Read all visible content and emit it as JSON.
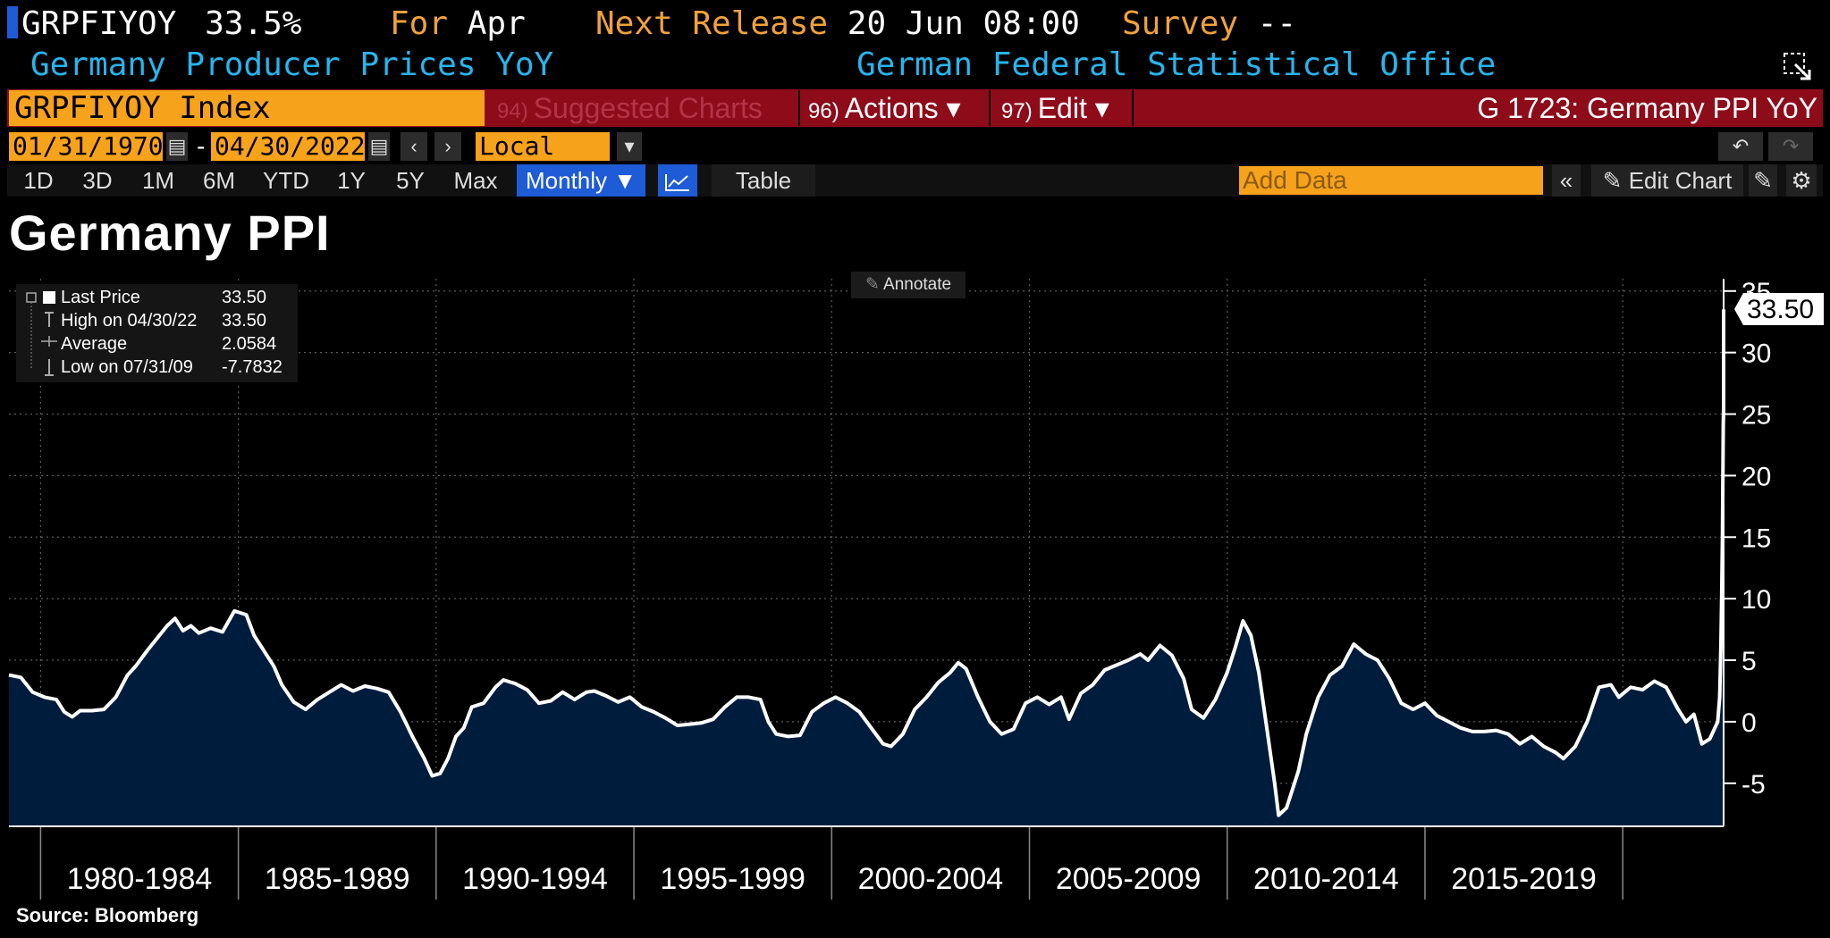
{
  "header": {
    "ticker": "GRPFIYOY",
    "value": "33.5%",
    "for_label": "For",
    "for_value": "Apr",
    "next_release_label": "Next Release",
    "next_release_value": "20 Jun 08:00",
    "survey_label": "Survey",
    "survey_value": "--",
    "description": "Germany Producer Prices YoY",
    "source_org": "German Federal Statistical Office"
  },
  "command_bar": {
    "security": "GRPFIYOY Index",
    "suggested": {
      "num": "94)",
      "label": "Suggested Charts"
    },
    "actions": {
      "num": "96)",
      "label": "Actions ▾"
    },
    "edit": {
      "num": "97)",
      "label": "Edit ▾"
    },
    "page_title": "G 1723: Germany PPI YoY"
  },
  "date_range": {
    "start": "01/31/1970",
    "end": "04/30/2022",
    "currency": "Local CCY"
  },
  "periods": [
    "1D",
    "3D",
    "1M",
    "6M",
    "YTD",
    "1Y",
    "5Y",
    "Max"
  ],
  "frequency": "Monthly ▼",
  "table_label": "Table",
  "add_data_placeholder": "Add Data",
  "edit_chart_label": "Edit Chart",
  "annotate_label": "Annotate",
  "legend": {
    "last_price_label": "Last Price",
    "last_price": "33.50",
    "high_label": "High on 04/30/22",
    "high": "33.50",
    "average_label": "Average",
    "average": "2.0584",
    "low_label": "Low on 07/31/09",
    "low": "-7.7832"
  },
  "source": "Source: Bloomberg",
  "chart_data": {
    "type": "area",
    "title": "Germany PPI",
    "series_color": "#ffffff",
    "fill_color": "#001c3d",
    "ylim": [
      -8.5,
      36
    ],
    "yticks": [
      -5,
      0,
      5,
      10,
      15,
      20,
      25,
      30,
      35
    ],
    "xlim": [
      1979.2,
      2022.55
    ],
    "x_groups": [
      "1980-1984",
      "1985-1989",
      "1990-1994",
      "1995-1999",
      "2000-2004",
      "2005-2009",
      "2010-2014",
      "2015-2019"
    ],
    "x_group_bounds": [
      1980,
      1985,
      1990,
      1995,
      2000,
      2005,
      2010,
      2015,
      2020
    ],
    "last_value_label": "33.50",
    "points": [
      [
        1979.2,
        3.8
      ],
      [
        1979.5,
        3.6
      ],
      [
        1979.8,
        2.4
      ],
      [
        1980.1,
        2.0
      ],
      [
        1980.4,
        1.8
      ],
      [
        1980.6,
        0.8
      ],
      [
        1980.8,
        0.4
      ],
      [
        1981.0,
        0.9
      ],
      [
        1981.3,
        0.9
      ],
      [
        1981.6,
        1.0
      ],
      [
        1981.9,
        2.0
      ],
      [
        1982.2,
        3.8
      ],
      [
        1982.4,
        4.5
      ],
      [
        1982.7,
        5.8
      ],
      [
        1983.0,
        7.0
      ],
      [
        1983.2,
        7.8
      ],
      [
        1983.4,
        8.4
      ],
      [
        1983.6,
        7.4
      ],
      [
        1983.8,
        7.8
      ],
      [
        1984.0,
        7.2
      ],
      [
        1984.3,
        7.6
      ],
      [
        1984.6,
        7.3
      ],
      [
        1984.9,
        9.0
      ],
      [
        1985.2,
        8.7
      ],
      [
        1985.4,
        7.0
      ],
      [
        1985.6,
        6.0
      ],
      [
        1985.9,
        4.5
      ],
      [
        1986.1,
        3.0
      ],
      [
        1986.4,
        1.6
      ],
      [
        1986.7,
        1.0
      ],
      [
        1987.0,
        1.8
      ],
      [
        1987.3,
        2.4
      ],
      [
        1987.6,
        3.0
      ],
      [
        1987.9,
        2.5
      ],
      [
        1988.2,
        2.9
      ],
      [
        1988.5,
        2.7
      ],
      [
        1988.8,
        2.4
      ],
      [
        1989.1,
        0.8
      ],
      [
        1989.4,
        -1.2
      ],
      [
        1989.7,
        -3.0
      ],
      [
        1989.9,
        -4.4
      ],
      [
        1990.1,
        -4.2
      ],
      [
        1990.3,
        -3.0
      ],
      [
        1990.5,
        -1.2
      ],
      [
        1990.7,
        -0.5
      ],
      [
        1990.9,
        1.2
      ],
      [
        1991.2,
        1.5
      ],
      [
        1991.5,
        2.8
      ],
      [
        1991.7,
        3.4
      ],
      [
        1992.0,
        3.1
      ],
      [
        1992.3,
        2.6
      ],
      [
        1992.6,
        1.5
      ],
      [
        1992.9,
        1.7
      ],
      [
        1993.2,
        2.4
      ],
      [
        1993.5,
        1.8
      ],
      [
        1993.8,
        2.4
      ],
      [
        1994.0,
        2.5
      ],
      [
        1994.3,
        2.1
      ],
      [
        1994.6,
        1.6
      ],
      [
        1994.9,
        2.0
      ],
      [
        1995.2,
        1.2
      ],
      [
        1995.5,
        0.8
      ],
      [
        1995.8,
        0.3
      ],
      [
        1996.1,
        -0.3
      ],
      [
        1996.4,
        -0.2
      ],
      [
        1996.7,
        -0.1
      ],
      [
        1997.0,
        0.2
      ],
      [
        1997.3,
        1.2
      ],
      [
        1997.6,
        2.0
      ],
      [
        1997.9,
        2.0
      ],
      [
        1998.2,
        1.8
      ],
      [
        1998.4,
        0.0
      ],
      [
        1998.6,
        -1.0
      ],
      [
        1998.9,
        -1.2
      ],
      [
        1999.2,
        -1.1
      ],
      [
        1999.5,
        0.8
      ],
      [
        1999.8,
        1.5
      ],
      [
        2000.1,
        2.0
      ],
      [
        2000.4,
        1.5
      ],
      [
        2000.7,
        0.8
      ],
      [
        2001.0,
        -0.5
      ],
      [
        2001.3,
        -1.8
      ],
      [
        2001.5,
        -2.0
      ],
      [
        2001.8,
        -1.0
      ],
      [
        2002.1,
        1.0
      ],
      [
        2002.4,
        2.0
      ],
      [
        2002.7,
        3.2
      ],
      [
        2003.0,
        4.0
      ],
      [
        2003.2,
        4.8
      ],
      [
        2003.4,
        4.3
      ],
      [
        2003.7,
        2.0
      ],
      [
        2004.0,
        0.0
      ],
      [
        2004.3,
        -1.0
      ],
      [
        2004.6,
        -0.6
      ],
      [
        2004.9,
        1.5
      ],
      [
        2005.2,
        2.0
      ],
      [
        2005.5,
        1.4
      ],
      [
        2005.8,
        2.0
      ],
      [
        2006.0,
        0.2
      ],
      [
        2006.3,
        2.3
      ],
      [
        2006.6,
        3.0
      ],
      [
        2006.9,
        4.2
      ],
      [
        2007.2,
        4.6
      ],
      [
        2007.5,
        5.0
      ],
      [
        2007.8,
        5.5
      ],
      [
        2008.0,
        5.0
      ],
      [
        2008.3,
        6.2
      ],
      [
        2008.6,
        5.4
      ],
      [
        2008.9,
        3.5
      ],
      [
        2009.1,
        1.0
      ],
      [
        2009.4,
        0.3
      ],
      [
        2009.7,
        1.8
      ],
      [
        2010.0,
        4.0
      ],
      [
        2010.2,
        6.0
      ],
      [
        2010.4,
        8.2
      ],
      [
        2010.6,
        7.0
      ],
      [
        2010.8,
        4.0
      ],
      [
        2011.0,
        -0.5
      ],
      [
        2011.2,
        -5.0
      ],
      [
        2011.3,
        -7.6
      ],
      [
        2011.5,
        -7.0
      ],
      [
        2011.8,
        -4.0
      ],
      [
        2012.0,
        -1.0
      ],
      [
        2012.3,
        2.0
      ],
      [
        2012.6,
        3.8
      ],
      [
        2012.9,
        4.5
      ],
      [
        2013.2,
        6.3
      ],
      [
        2013.5,
        5.5
      ],
      [
        2013.8,
        5.0
      ],
      [
        2014.1,
        3.5
      ],
      [
        2014.4,
        1.5
      ],
      [
        2014.7,
        1.0
      ],
      [
        2015.0,
        1.5
      ],
      [
        2015.3,
        0.5
      ],
      [
        2015.6,
        0.0
      ],
      [
        2015.9,
        -0.5
      ],
      [
        2016.2,
        -0.8
      ],
      [
        2016.5,
        -0.8
      ],
      [
        2016.8,
        -0.7
      ],
      [
        2017.1,
        -1.0
      ],
      [
        2017.4,
        -1.8
      ],
      [
        2017.7,
        -1.2
      ],
      [
        2018.0,
        -2.0
      ],
      [
        2018.3,
        -2.5
      ],
      [
        2018.5,
        -3.0
      ],
      [
        2018.8,
        -2.0
      ],
      [
        2019.1,
        0.0
      ],
      [
        2019.4,
        2.8
      ],
      [
        2019.7,
        3.0
      ],
      [
        2019.9,
        2.0
      ],
      [
        2020.2,
        2.8
      ],
      [
        2020.5,
        2.6
      ],
      [
        2020.8,
        3.3
      ],
      [
        2021.1,
        2.8
      ],
      [
        2021.4,
        1.0
      ],
      [
        2021.6,
        0.0
      ],
      [
        2021.8,
        0.6
      ],
      [
        2022.0,
        -1.8
      ],
      [
        2022.2,
        -1.4
      ],
      [
        2022.4,
        0.0
      ],
      [
        2022.45,
        2.0
      ],
      [
        2022.48,
        6.0
      ],
      [
        2022.5,
        10.0
      ],
      [
        2022.52,
        15.0
      ],
      [
        2022.53,
        19.0
      ],
      [
        2022.54,
        24.0
      ],
      [
        2022.55,
        25.5
      ],
      [
        2022.55,
        33.5
      ]
    ]
  }
}
